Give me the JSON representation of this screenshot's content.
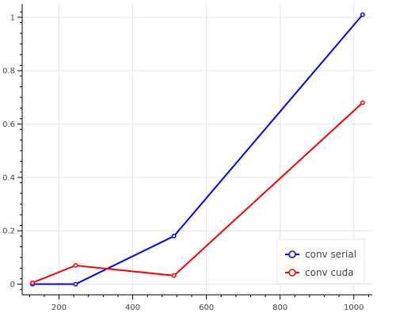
{
  "chart_data": {
    "type": "line",
    "title": "",
    "xlabel": "",
    "ylabel": "",
    "xlim": [
      100,
      1050
    ],
    "ylim": [
      -0.04,
      1.05
    ],
    "x_ticks": [
      200,
      400,
      600,
      800,
      1000
    ],
    "y_ticks": [
      0,
      0.2,
      0.4,
      0.6,
      0.8,
      1
    ],
    "grid": true,
    "legend_position": "bottom-right",
    "series": [
      {
        "name": "conv serial",
        "color": "#0000ff",
        "marker": "open-circle",
        "x": [
          128,
          245,
          512,
          1024
        ],
        "y": [
          0.0,
          0.0,
          0.18,
          1.01
        ]
      },
      {
        "name": "conv cuda",
        "color": "#ff0000",
        "marker": "open-circle",
        "x": [
          128,
          245,
          512,
          1024
        ],
        "y": [
          0.005,
          0.07,
          0.032,
          0.68
        ]
      }
    ]
  }
}
